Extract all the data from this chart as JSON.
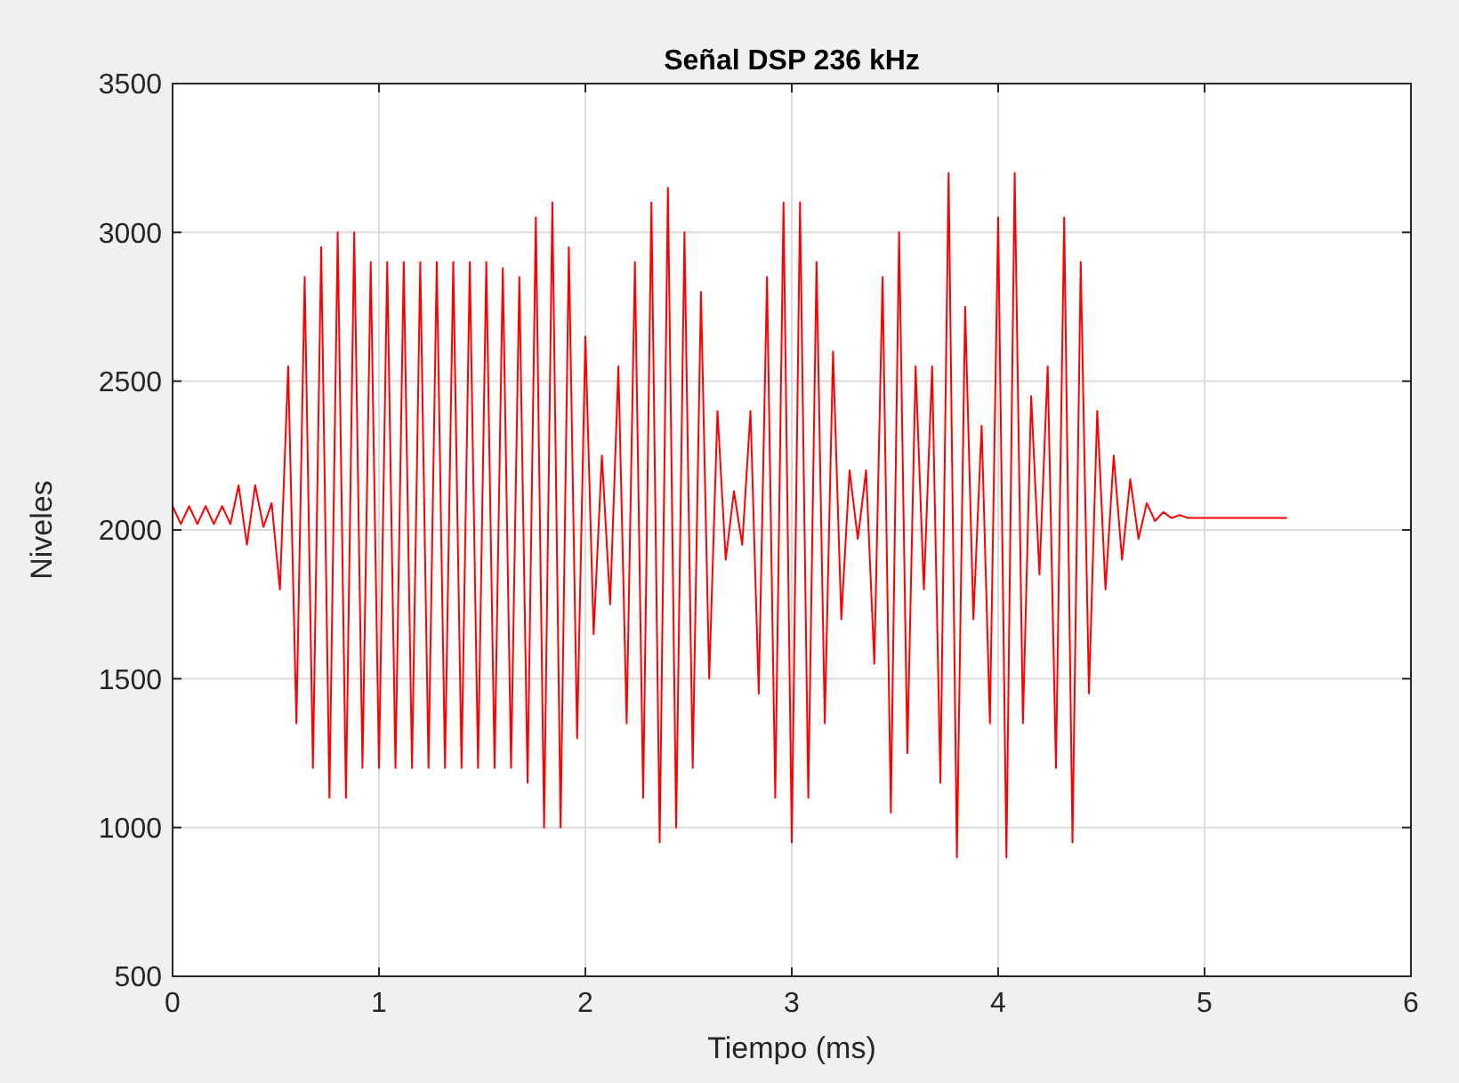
{
  "chart_data": {
    "type": "line",
    "title": "Señal DSP 236 kHz",
    "xlabel": "Tiempo (ms)",
    "ylabel": "Niveles",
    "xlim": [
      0,
      6
    ],
    "xticks": [
      0,
      1,
      2,
      3,
      4,
      5,
      6
    ],
    "ylim": [
      500,
      3500
    ],
    "yticks": [
      500,
      1000,
      1500,
      2000,
      2500,
      3000,
      3500
    ],
    "grid": true,
    "series": [
      {
        "color": "#ff0000",
        "x": [
          0,
          0.04,
          0.08,
          0.12,
          0.16,
          0.2,
          0.24,
          0.28,
          0.32,
          0.36,
          0.4,
          0.44,
          0.48,
          0.52,
          0.56,
          0.6,
          0.64,
          0.68,
          0.72,
          0.76,
          0.8,
          0.84,
          0.88,
          0.92,
          0.96,
          1.0,
          1.04,
          1.08,
          1.12,
          1.16,
          1.2,
          1.24,
          1.28,
          1.32,
          1.36,
          1.4,
          1.44,
          1.48,
          1.52,
          1.56,
          1.6,
          1.64,
          1.68,
          1.72,
          1.76,
          1.8,
          1.84,
          1.88,
          1.92,
          1.96,
          2.0,
          2.04,
          2.08,
          2.12,
          2.16,
          2.2,
          2.24,
          2.28,
          2.32,
          2.36,
          2.4,
          2.44,
          2.48,
          2.52,
          2.56,
          2.6,
          2.64,
          2.68,
          2.72,
          2.76,
          2.8,
          2.84,
          2.88,
          2.92,
          2.96,
          3.0,
          3.04,
          3.08,
          3.12,
          3.16,
          3.2,
          3.24,
          3.28,
          3.32,
          3.36,
          3.4,
          3.44,
          3.48,
          3.52,
          3.56,
          3.6,
          3.64,
          3.68,
          3.72,
          3.76,
          3.8,
          3.84,
          3.88,
          3.92,
          3.96,
          4.0,
          4.04,
          4.08,
          4.12,
          4.16,
          4.2,
          4.24,
          4.28,
          4.32,
          4.36,
          4.4,
          4.44,
          4.48,
          4.52,
          4.56,
          4.6,
          4.64,
          4.68,
          4.72,
          4.76,
          4.8,
          4.84,
          4.88,
          4.92,
          5.4
        ],
        "values": [
          2080,
          2020,
          2080,
          2020,
          2080,
          2020,
          2080,
          2020,
          2150,
          1950,
          2150,
          2010,
          2090,
          1800,
          2550,
          1350,
          2850,
          1200,
          2950,
          1100,
          3000,
          1100,
          3000,
          1200,
          2900,
          1200,
          2900,
          1200,
          2900,
          1200,
          2900,
          1200,
          2900,
          1200,
          2900,
          1200,
          2900,
          1200,
          2900,
          1200,
          2880,
          1200,
          2850,
          1150,
          3050,
          1000,
          3100,
          1000,
          2950,
          1300,
          2650,
          1650,
          2250,
          1750,
          2550,
          1350,
          2900,
          1100,
          3100,
          950,
          3150,
          1000,
          3000,
          1200,
          2800,
          1500,
          2400,
          1900,
          2130,
          1950,
          2400,
          1450,
          2850,
          1100,
          3100,
          950,
          3100,
          1100,
          2900,
          1350,
          2600,
          1700,
          2200,
          1970,
          2200,
          1550,
          2850,
          1050,
          3000,
          1250,
          2550,
          1800,
          2550,
          1150,
          3200,
          900,
          2750,
          1700,
          2350,
          1350,
          3050,
          900,
          3200,
          1350,
          2450,
          1850,
          2550,
          1200,
          3050,
          950,
          2900,
          1450,
          2400,
          1800,
          2250,
          1900,
          2170,
          1970,
          2090,
          2030,
          2060,
          2040,
          2050,
          2040,
          2040
        ]
      }
    ]
  }
}
